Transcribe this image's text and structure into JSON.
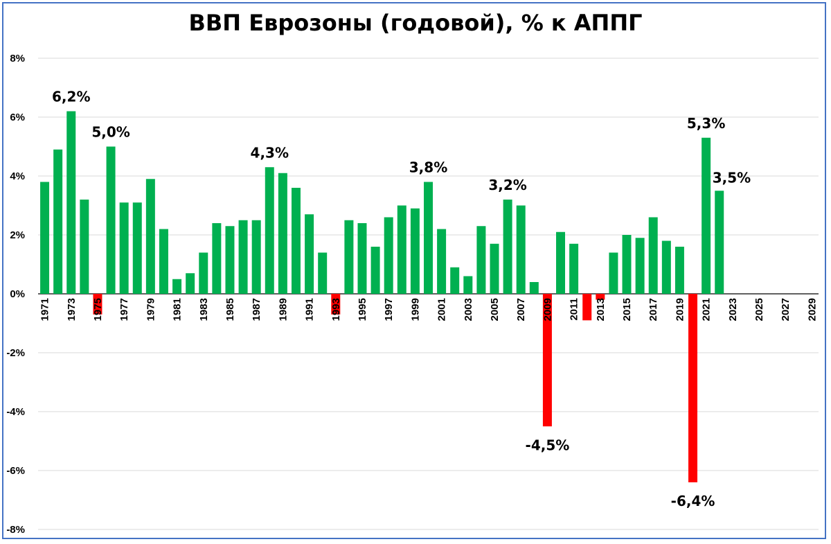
{
  "chart_data": {
    "type": "bar",
    "title": "ВВП Еврозоны (годовой), % к АППГ",
    "xlabel": "",
    "ylabel": "",
    "ylim": [
      -8,
      8
    ],
    "y_ticks": [
      {
        "value": 8,
        "label": "8%"
      },
      {
        "value": 6,
        "label": "6%"
      },
      {
        "value": 4,
        "label": "4%"
      },
      {
        "value": 2,
        "label": "2%"
      },
      {
        "value": 0,
        "label": "0%"
      },
      {
        "value": -2,
        "label": "-2%"
      },
      {
        "value": -4,
        "label": "-4%"
      },
      {
        "value": -6,
        "label": "-6%"
      },
      {
        "value": -8,
        "label": "-8%"
      }
    ],
    "grid": true,
    "legend": "none",
    "colors": {
      "positive": "#00b050",
      "negative": "#ff0000",
      "grid": "#d9d9d9",
      "axis": "#000000",
      "frame": "#4472c4"
    },
    "x_range": [
      1971,
      2030
    ],
    "x_tick_labels": [
      "1971",
      "1973",
      "1975",
      "1977",
      "1979",
      "1981",
      "1983",
      "1985",
      "1987",
      "1989",
      "1991",
      "1993",
      "1995",
      "1997",
      "1999",
      "2001",
      "2003",
      "2005",
      "2007",
      "2009",
      "2011",
      "2013",
      "2015",
      "2017",
      "2019",
      "2021",
      "2023",
      "2025",
      "2027",
      "2029"
    ],
    "years": [
      1971,
      1972,
      1973,
      1974,
      1975,
      1976,
      1977,
      1978,
      1979,
      1980,
      1981,
      1982,
      1983,
      1984,
      1985,
      1986,
      1987,
      1988,
      1989,
      1990,
      1991,
      1992,
      1993,
      1994,
      1995,
      1996,
      1997,
      1998,
      1999,
      2000,
      2001,
      2002,
      2003,
      2004,
      2005,
      2006,
      2007,
      2008,
      2009,
      2010,
      2011,
      2012,
      2013,
      2014,
      2015,
      2016,
      2017,
      2018,
      2019,
      2020,
      2021,
      2022
    ],
    "values": [
      3.8,
      4.9,
      6.2,
      3.2,
      -0.7,
      5.0,
      3.1,
      3.1,
      3.9,
      2.2,
      0.5,
      0.7,
      1.4,
      2.4,
      2.3,
      2.5,
      2.5,
      4.3,
      4.1,
      3.6,
      2.7,
      1.4,
      -0.7,
      2.5,
      2.4,
      1.6,
      2.6,
      3.0,
      2.9,
      3.8,
      2.2,
      0.9,
      0.6,
      2.3,
      1.7,
      3.2,
      3.0,
      0.4,
      -4.5,
      2.1,
      1.7,
      -0.9,
      -0.2,
      1.4,
      2.0,
      1.9,
      2.6,
      1.8,
      1.6,
      -6.4,
      5.3,
      3.5
    ],
    "data_labels": [
      {
        "year": 1973,
        "text": "6,2%"
      },
      {
        "year": 1976,
        "text": "5,0%"
      },
      {
        "year": 1988,
        "text": "4,3%"
      },
      {
        "year": 2000,
        "text": "3,8%"
      },
      {
        "year": 2006,
        "text": "3,2%"
      },
      {
        "year": 2009,
        "text": "-4,5%"
      },
      {
        "year": 2020,
        "text": "-6,4%"
      },
      {
        "year": 2021,
        "text": "5,3%"
      },
      {
        "year": 2022,
        "text": "3,5%"
      }
    ]
  }
}
